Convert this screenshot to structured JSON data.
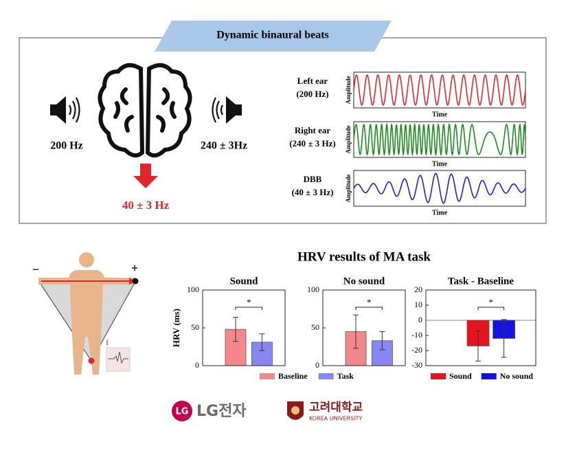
{
  "banner": "Dynamic binaural beats",
  "left_tone": "200 Hz",
  "right_tone": "240 ± 3Hz",
  "beat": "40 ± 3 Hz",
  "waves": [
    {
      "name": "Left ear",
      "freq": "(200 Hz)",
      "color": "#e0262b"
    },
    {
      "name": "Right ear",
      "freq": "(240 ± 3 Hz)",
      "color": "#1a8a1a"
    },
    {
      "name": "DBB",
      "freq": "(40 ± 3 Hz)",
      "color": "#1d1dd6"
    }
  ],
  "wave_ylabel": "Amplitude",
  "wave_xlabel": "Time",
  "ecg": {
    "minus": "−",
    "plus": "+",
    "lead": "I"
  },
  "hrv_title": "HRV results of MA task",
  "chart_data": [
    {
      "type": "bar",
      "title": "Sound",
      "ylabel": "HRV (ms)",
      "categories": [
        "Baseline",
        "Task"
      ],
      "values": [
        48,
        31
      ],
      "errors": [
        16,
        11
      ],
      "colors": [
        "#f4878a",
        "#8787f4"
      ],
      "ylim": [
        0,
        100
      ],
      "yticks": [
        0,
        50,
        100
      ],
      "significance": "*"
    },
    {
      "type": "bar",
      "title": "No sound",
      "categories": [
        "Baseline",
        "Task"
      ],
      "values": [
        45,
        33
      ],
      "errors": [
        22,
        12
      ],
      "colors": [
        "#f4878a",
        "#8787f4"
      ],
      "ylim": [
        0,
        100
      ],
      "yticks": [
        0,
        50,
        100
      ],
      "significance": "*"
    },
    {
      "type": "bar",
      "title": "Task - Baseline",
      "categories": [
        "Sound",
        "No sound"
      ],
      "values": [
        -17,
        -12
      ],
      "errors": [
        10,
        12.5
      ],
      "colors": [
        "#e8141b",
        "#1414e0"
      ],
      "ylim": [
        -30,
        20
      ],
      "yticks": [
        -30,
        -20,
        -10,
        0,
        10,
        20
      ],
      "significance": "*"
    }
  ],
  "logos": {
    "lg": "LG전자",
    "ku": "고려대학교",
    "ku_en": "KOREA UNIVERSITY"
  }
}
